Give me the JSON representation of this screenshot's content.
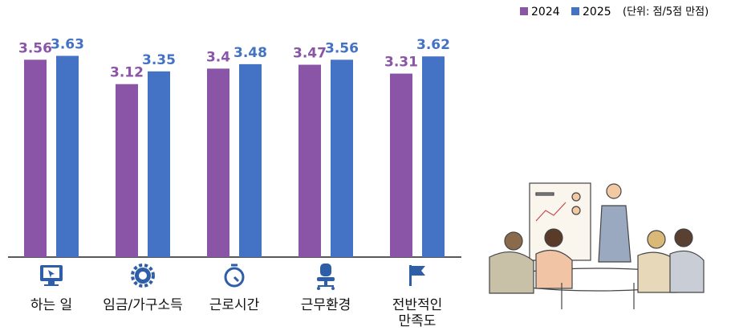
{
  "chart_data": {
    "type": "bar",
    "categories": [
      "하는 일",
      "임금/가구소득",
      "근로시간",
      "근무환경",
      "전반적인\n만족도"
    ],
    "series": [
      {
        "name": "2024",
        "color": "#8a55a6",
        "values": [
          3.56,
          3.12,
          3.4,
          3.47,
          3.31
        ]
      },
      {
        "name": "2025",
        "color": "#4472c4",
        "values": [
          3.63,
          3.35,
          3.48,
          3.56,
          3.62
        ]
      }
    ],
    "unit_note": "(단위: 점/5점 만점)",
    "ylim": [
      0,
      4
    ]
  }
}
